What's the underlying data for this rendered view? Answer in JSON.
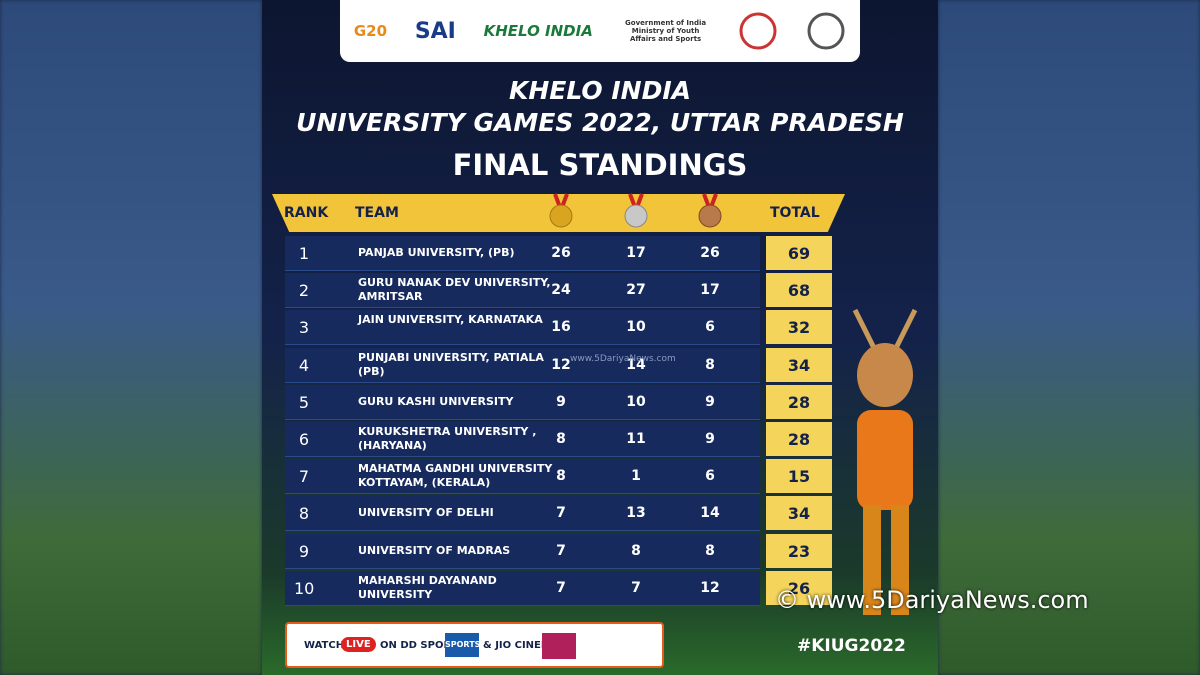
{
  "header": {
    "logos": [
      "G20",
      "SAI",
      "KHELO INDIA",
      "Government of India",
      "Ministry of Youth Affairs and Sports"
    ]
  },
  "title": {
    "line1": "KHELO INDIA",
    "line2": "UNIVERSITY GAMES 2022, UTTAR PRADESH",
    "subtitle": "FINAL STANDINGS"
  },
  "table": {
    "columns": {
      "rank": "RANK",
      "team": "TEAM",
      "total": "TOTAL"
    },
    "rows": [
      [
        1,
        "PANJAB UNIVERSITY, (PB)",
        26,
        17,
        26,
        69
      ],
      [
        2,
        "GURU NANAK DEV UNIVERSITY, AMRITSAR",
        24,
        27,
        17,
        68
      ],
      [
        3,
        "JAIN UNIVERSITY, KARNATAKA",
        16,
        10,
        6,
        32
      ],
      [
        4,
        "PUNJABI UNIVERSITY, PATIALA (PB)",
        12,
        14,
        8,
        34
      ],
      [
        5,
        "GURU KASHI UNIVERSITY",
        9,
        10,
        9,
        28
      ],
      [
        6,
        "KURUKSHETRA UNIVERSITY , (HARYANA)",
        8,
        11,
        9,
        28
      ],
      [
        7,
        "MAHATMA GANDHI UNIVERSITY KOTTAYAM, (KERALA)",
        8,
        1,
        6,
        15
      ],
      [
        8,
        "UNIVERSITY OF DELHI",
        7,
        13,
        14,
        34
      ],
      [
        9,
        "UNIVERSITY OF MADRAS",
        7,
        8,
        8,
        23
      ],
      [
        10,
        "MAHARSHI DAYANAND UNIVERSITY",
        7,
        7,
        12,
        26
      ]
    ]
  },
  "footer": {
    "watch": "WATCH",
    "live": "LIVE",
    "channel": "ON DD SPORTS",
    "channel_logo": "SPORTS",
    "cinema": "& JIO CINEMA",
    "hashtag": "#KIUG2022"
  },
  "watermark": {
    "center": "www.5DariyaNews.com",
    "corner": "© www.5DariyaNews.com"
  }
}
